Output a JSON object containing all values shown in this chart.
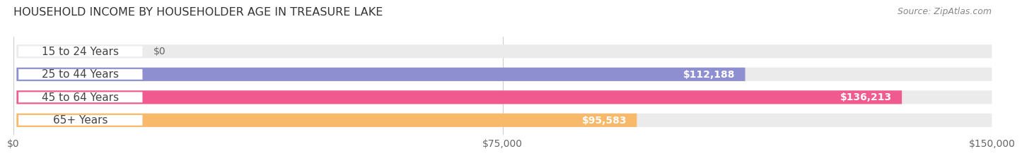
{
  "title": "HOUSEHOLD INCOME BY HOUSEHOLDER AGE IN TREASURE LAKE",
  "source": "Source: ZipAtlas.com",
  "categories": [
    "15 to 24 Years",
    "25 to 44 Years",
    "45 to 64 Years",
    "65+ Years"
  ],
  "values": [
    0,
    112188,
    136213,
    95583
  ],
  "bar_colors": [
    "#62CEC9",
    "#8E8FD0",
    "#F05A8E",
    "#F9B96A"
  ],
  "bar_bg_color": "#EBEBEB",
  "value_labels": [
    "$0",
    "$112,188",
    "$136,213",
    "$95,583"
  ],
  "x_ticks": [
    0,
    75000,
    150000
  ],
  "x_tick_labels": [
    "$0",
    "$75,000",
    "$150,000"
  ],
  "xlim": [
    0,
    150000
  ],
  "title_fontsize": 11.5,
  "source_fontsize": 9,
  "label_fontsize": 11,
  "value_fontsize": 10,
  "tick_fontsize": 10,
  "background_color": "#FFFFFF"
}
